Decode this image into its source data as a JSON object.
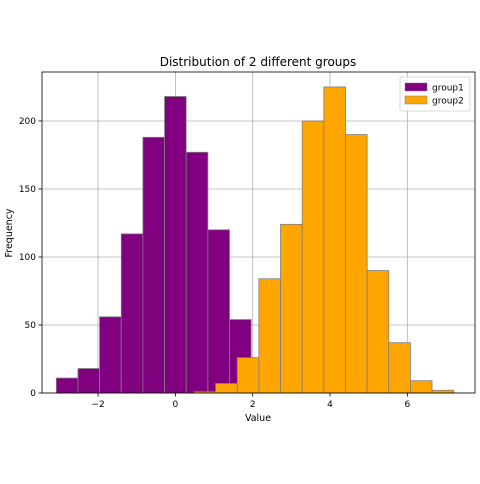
{
  "chart_data": {
    "type": "histogram",
    "title": "Distribution of 2 different groups",
    "xlabel": "Value",
    "ylabel": "Frequency",
    "xlim": [
      -3.45,
      7.75
    ],
    "ylim": [
      0,
      236
    ],
    "x_ticks": [
      -2,
      0,
      2,
      4,
      6
    ],
    "y_ticks": [
      0,
      50,
      100,
      150,
      200
    ],
    "grid": true,
    "legend_position": "top-right",
    "series": [
      {
        "name": "group1",
        "color": "#800080",
        "bin_edges": [
          -3.08,
          -2.52,
          -1.96,
          -1.4,
          -0.84,
          -0.28,
          0.28,
          0.84,
          1.4,
          1.96
        ],
        "counts": [
          11,
          18,
          56,
          117,
          188,
          218,
          177,
          120,
          54
        ]
      },
      {
        "name": "group2",
        "color": "#ffa500",
        "bin_edges": [
          0.48,
          1.04,
          1.6,
          2.16,
          2.72,
          3.28,
          3.84,
          4.4,
          4.96,
          5.52,
          6.08,
          6.64,
          7.2,
          7.76
        ],
        "counts": [
          1,
          7,
          26,
          84,
          124,
          200,
          225,
          190,
          90,
          37,
          9,
          2,
          0
        ],
        "note_visible": ""
      }
    ]
  }
}
